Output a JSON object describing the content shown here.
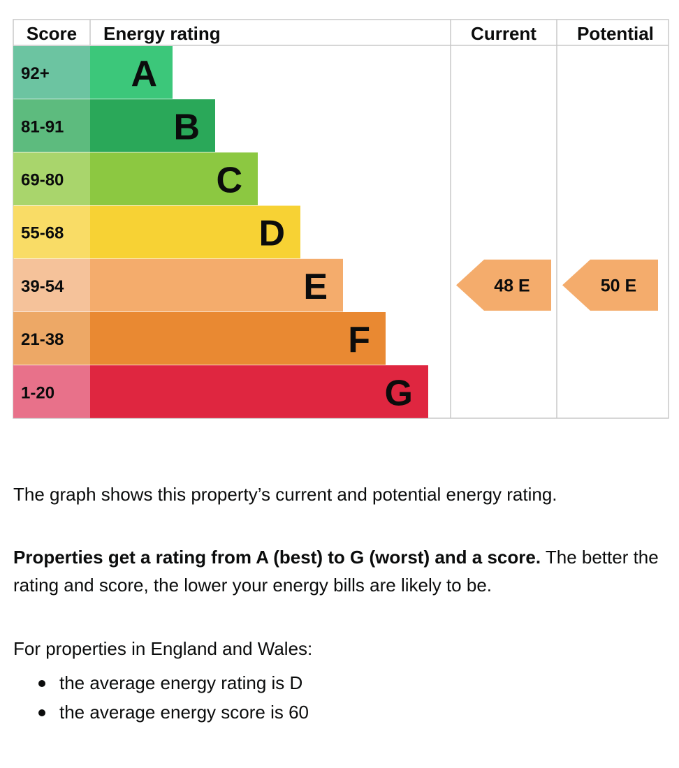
{
  "chart_data": {
    "type": "table",
    "headers": {
      "score": "Score",
      "rating": "Energy rating",
      "current": "Current",
      "potential": "Potential"
    },
    "bands": [
      {
        "range": "92+",
        "letter": "A",
        "color": "#3cc77a",
        "score_color": "#6cc4a1"
      },
      {
        "range": "81-91",
        "letter": "B",
        "color": "#2aa859",
        "score_color": "#5dbb7e"
      },
      {
        "range": "69-80",
        "letter": "C",
        "color": "#8cc841",
        "score_color": "#a9d56c"
      },
      {
        "range": "55-68",
        "letter": "D",
        "color": "#f7d234",
        "score_color": "#f9dc66"
      },
      {
        "range": "39-54",
        "letter": "E",
        "color": "#f4ac6c",
        "score_color": "#f5c29a"
      },
      {
        "range": "21-38",
        "letter": "F",
        "color": "#e98932",
        "score_color": "#eda866"
      },
      {
        "range": "1-20",
        "letter": "G",
        "color": "#df2640",
        "score_color": "#e8718a"
      }
    ],
    "current": {
      "score": 48,
      "band": "E",
      "label": "48 E",
      "color": "#f4ac6c"
    },
    "potential": {
      "score": 50,
      "band": "E",
      "label": "50 E",
      "color": "#f4ac6c"
    }
  },
  "text": {
    "p1": "The graph shows this property’s current and potential energy rating.",
    "p2_bold": "Properties get a rating from A (best) to G (worst) and a score.",
    "p2_rest": " The better the rating and score, the lower your energy bills are likely to be.",
    "p3": "For properties in England and Wales:",
    "bullets": [
      "the average energy rating is D",
      "the average energy score is 60"
    ]
  }
}
